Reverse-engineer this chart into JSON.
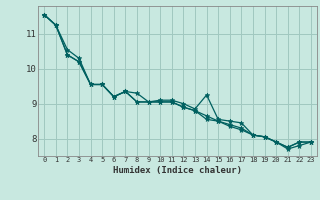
{
  "xlabel": "Humidex (Indice chaleur)",
  "xlim": [
    -0.5,
    23.5
  ],
  "ylim": [
    7.5,
    11.8
  ],
  "yticks": [
    8,
    9,
    10,
    11
  ],
  "xticks": [
    0,
    1,
    2,
    3,
    4,
    5,
    6,
    7,
    8,
    9,
    10,
    11,
    12,
    13,
    14,
    15,
    16,
    17,
    18,
    19,
    20,
    21,
    22,
    23
  ],
  "xtick_labels": [
    "0",
    "1",
    "2",
    "3",
    "4",
    "5",
    "6",
    "7",
    "8",
    "9",
    "10",
    "11",
    "12",
    "13",
    "14",
    "15",
    "16",
    "17",
    "18",
    "19",
    "20",
    "21",
    "22",
    "23"
  ],
  "background_color": "#c8e8e0",
  "grid_color": "#a0c8c0",
  "line_color": "#006060",
  "lines": [
    [
      11.55,
      11.25,
      10.55,
      10.3,
      9.55,
      9.55,
      9.2,
      9.35,
      9.3,
      9.05,
      9.1,
      9.1,
      9.0,
      8.85,
      9.25,
      8.55,
      8.5,
      8.45,
      8.1,
      8.05,
      7.9,
      7.75,
      7.9,
      7.9
    ],
    [
      11.55,
      11.25,
      10.4,
      10.2,
      9.55,
      9.55,
      9.2,
      9.35,
      9.05,
      9.05,
      9.05,
      9.05,
      8.9,
      8.8,
      8.65,
      8.5,
      8.4,
      8.3,
      8.1,
      8.05,
      7.9,
      7.75,
      7.9,
      7.9
    ],
    [
      11.55,
      11.25,
      10.4,
      10.2,
      9.55,
      9.55,
      9.2,
      9.35,
      9.05,
      9.05,
      9.05,
      9.05,
      8.9,
      8.8,
      8.55,
      8.5,
      8.35,
      8.25,
      8.1,
      8.05,
      7.9,
      7.7,
      7.8,
      7.9
    ]
  ],
  "marker": "*",
  "markersize": 3.5,
  "linewidth": 0.9
}
